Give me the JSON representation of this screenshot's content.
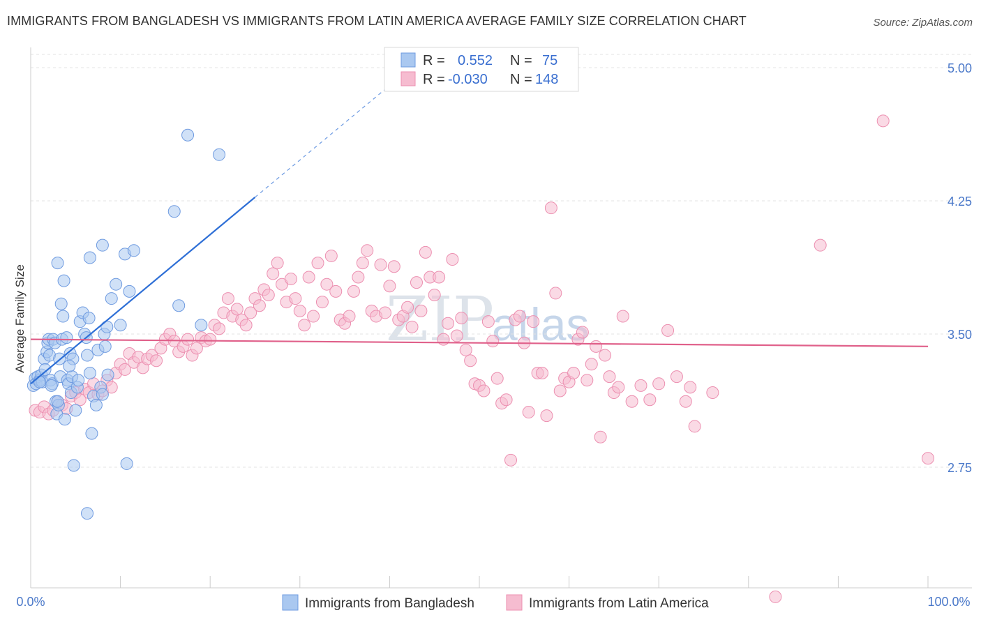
{
  "title": "IMMIGRANTS FROM BANGLADESH VS IMMIGRANTS FROM LATIN AMERICA AVERAGE FAMILY SIZE CORRELATION CHART",
  "source": "Source: ZipAtlas.com",
  "watermark": {
    "part1": "ZIP",
    "part2": "atlas"
  },
  "colors": {
    "blue_fill": "#aac8f0",
    "blue_stroke": "#6f9be0",
    "blue_line": "#2e6fd6",
    "pink_fill": "#f6bcd0",
    "pink_stroke": "#ec8fb0",
    "pink_line": "#e0608a",
    "axis_text": "#4a78c9",
    "grid": "#e3e3e3"
  },
  "legend_box": {
    "series1": {
      "r_label": "R =",
      "r_value": "0.552",
      "n_label": "N =",
      "n_value": "75"
    },
    "series2": {
      "r_label": "R =",
      "r_value": "-0.030",
      "n_label": "N =",
      "n_value": "148"
    }
  },
  "chart_data": {
    "type": "scatter",
    "title": "IMMIGRANTS FROM BANGLADESH VS IMMIGRANTS FROM LATIN AMERICA AVERAGE FAMILY SIZE CORRELATION CHART",
    "xlabel": "",
    "ylabel": "Average Family Size",
    "xlim": [
      0,
      100
    ],
    "ylim": [
      2.0,
      5.1
    ],
    "x_tick_labels": [
      "0.0%",
      "100.0%"
    ],
    "y_ticks": [
      2.75,
      3.5,
      4.25,
      5.0
    ],
    "y_tick_labels": [
      "2.75",
      "3.50",
      "4.25",
      "5.00"
    ],
    "grid": true,
    "legend_position": "bottom",
    "series": [
      {
        "name": "Immigrants from Bangladesh",
        "color": "blue",
        "R": 0.552,
        "N": 75,
        "trend": {
          "x_start": 0.0,
          "y_start": 3.22,
          "x_end": 25.0,
          "y_end": 4.27,
          "dashed_to_x": 40.5,
          "dashed_to_y": 4.92
        },
        "points": [
          [
            0.3,
            3.21
          ],
          [
            0.5,
            3.25
          ],
          [
            0.6,
            3.22
          ],
          [
            0.8,
            3.26
          ],
          [
            1.0,
            3.24
          ],
          [
            1.2,
            3.27
          ],
          [
            1.3,
            3.23
          ],
          [
            1.5,
            3.36
          ],
          [
            1.6,
            3.3
          ],
          [
            1.8,
            3.4
          ],
          [
            1.9,
            3.45
          ],
          [
            2.0,
            3.47
          ],
          [
            2.1,
            3.38
          ],
          [
            2.2,
            3.24
          ],
          [
            2.4,
            3.22
          ],
          [
            2.5,
            3.47
          ],
          [
            2.7,
            3.45
          ],
          [
            2.8,
            3.12
          ],
          [
            2.9,
            3.05
          ],
          [
            3.0,
            3.9
          ],
          [
            3.1,
            3.1
          ],
          [
            3.2,
            3.36
          ],
          [
            3.3,
            3.26
          ],
          [
            3.4,
            3.67
          ],
          [
            3.5,
            3.47
          ],
          [
            3.6,
            3.6
          ],
          [
            3.7,
            3.8
          ],
          [
            3.8,
            3.02
          ],
          [
            4.0,
            3.48
          ],
          [
            4.1,
            3.24
          ],
          [
            4.2,
            3.22
          ],
          [
            4.4,
            3.39
          ],
          [
            4.5,
            3.17
          ],
          [
            4.6,
            3.26
          ],
          [
            4.7,
            3.36
          ],
          [
            4.8,
            2.76
          ],
          [
            5.0,
            3.07
          ],
          [
            5.2,
            3.2
          ],
          [
            5.3,
            3.24
          ],
          [
            5.5,
            3.57
          ],
          [
            5.8,
            3.62
          ],
          [
            6.0,
            3.5
          ],
          [
            6.2,
            3.48
          ],
          [
            6.3,
            3.38
          ],
          [
            6.5,
            3.59
          ],
          [
            6.6,
            3.28
          ],
          [
            6.8,
            2.94
          ],
          [
            7.0,
            3.15
          ],
          [
            7.3,
            3.1
          ],
          [
            7.5,
            3.41
          ],
          [
            7.8,
            3.2
          ],
          [
            8.0,
            3.16
          ],
          [
            8.2,
            3.5
          ],
          [
            8.3,
            3.43
          ],
          [
            8.5,
            3.54
          ],
          [
            8.6,
            3.27
          ],
          [
            9.0,
            3.7
          ],
          [
            9.5,
            3.78
          ],
          [
            10.0,
            3.55
          ],
          [
            10.5,
            3.95
          ],
          [
            10.7,
            2.77
          ],
          [
            8.0,
            4.0
          ],
          [
            6.6,
            3.93
          ],
          [
            11.0,
            3.74
          ],
          [
            11.5,
            3.97
          ],
          [
            6.3,
            2.49
          ],
          [
            16.0,
            4.19
          ],
          [
            16.5,
            3.66
          ],
          [
            17.5,
            4.62
          ],
          [
            19.0,
            3.55
          ],
          [
            21.0,
            4.51
          ],
          [
            3.0,
            3.12
          ],
          [
            1.0,
            3.23
          ],
          [
            2.3,
            3.21
          ],
          [
            4.3,
            3.32
          ]
        ]
      },
      {
        "name": "Immigrants from Latin America",
        "color": "pink",
        "R": -0.03,
        "N": 148,
        "trend": {
          "x_start": 0.0,
          "y_start": 3.47,
          "x_end": 100.0,
          "y_end": 3.43
        },
        "points": [
          [
            0.5,
            3.07
          ],
          [
            1.0,
            3.06
          ],
          [
            1.5,
            3.09
          ],
          [
            2.0,
            3.05
          ],
          [
            2.5,
            3.07
          ],
          [
            3.0,
            3.12
          ],
          [
            3.5,
            3.1
          ],
          [
            4.0,
            3.08
          ],
          [
            4.5,
            3.15
          ],
          [
            5.0,
            3.17
          ],
          [
            5.5,
            3.13
          ],
          [
            6.0,
            3.19
          ],
          [
            6.5,
            3.17
          ],
          [
            7.0,
            3.22
          ],
          [
            7.5,
            3.16
          ],
          [
            8.0,
            3.18
          ],
          [
            8.5,
            3.24
          ],
          [
            9.0,
            3.2
          ],
          [
            9.5,
            3.28
          ],
          [
            10.0,
            3.33
          ],
          [
            10.5,
            3.3
          ],
          [
            11.0,
            3.39
          ],
          [
            11.5,
            3.34
          ],
          [
            12.0,
            3.37
          ],
          [
            12.5,
            3.31
          ],
          [
            13.0,
            3.36
          ],
          [
            13.5,
            3.38
          ],
          [
            14.0,
            3.35
          ],
          [
            14.5,
            3.42
          ],
          [
            15.0,
            3.47
          ],
          [
            15.5,
            3.5
          ],
          [
            16.0,
            3.46
          ],
          [
            16.5,
            3.4
          ],
          [
            17.0,
            3.43
          ],
          [
            17.5,
            3.47
          ],
          [
            18.0,
            3.38
          ],
          [
            18.5,
            3.42
          ],
          [
            19.0,
            3.48
          ],
          [
            19.5,
            3.46
          ],
          [
            20.0,
            3.47
          ],
          [
            20.5,
            3.55
          ],
          [
            21.0,
            3.53
          ],
          [
            21.5,
            3.62
          ],
          [
            22.0,
            3.7
          ],
          [
            22.5,
            3.6
          ],
          [
            23.0,
            3.64
          ],
          [
            23.5,
            3.58
          ],
          [
            24.0,
            3.55
          ],
          [
            24.5,
            3.62
          ],
          [
            25.0,
            3.7
          ],
          [
            25.5,
            3.66
          ],
          [
            26.0,
            3.75
          ],
          [
            26.5,
            3.72
          ],
          [
            27.0,
            3.84
          ],
          [
            27.5,
            3.9
          ],
          [
            28.0,
            3.78
          ],
          [
            28.5,
            3.68
          ],
          [
            29.0,
            3.81
          ],
          [
            29.5,
            3.7
          ],
          [
            30.0,
            3.63
          ],
          [
            30.5,
            3.55
          ],
          [
            31.0,
            3.82
          ],
          [
            31.5,
            3.6
          ],
          [
            32.0,
            3.9
          ],
          [
            32.5,
            3.68
          ],
          [
            33.0,
            3.78
          ],
          [
            33.5,
            3.94
          ],
          [
            34.0,
            3.74
          ],
          [
            34.5,
            3.58
          ],
          [
            35.0,
            3.56
          ],
          [
            35.5,
            3.6
          ],
          [
            36.0,
            3.74
          ],
          [
            36.5,
            3.82
          ],
          [
            37.0,
            3.9
          ],
          [
            37.5,
            3.97
          ],
          [
            38.0,
            3.63
          ],
          [
            38.5,
            3.6
          ],
          [
            39.0,
            3.89
          ],
          [
            39.5,
            3.62
          ],
          [
            40.0,
            3.77
          ],
          [
            40.5,
            3.88
          ],
          [
            41.0,
            3.58
          ],
          [
            41.5,
            3.6
          ],
          [
            42.0,
            3.65
          ],
          [
            42.5,
            3.54
          ],
          [
            43.0,
            3.79
          ],
          [
            43.5,
            3.63
          ],
          [
            44.0,
            3.96
          ],
          [
            44.5,
            3.82
          ],
          [
            45.0,
            3.72
          ],
          [
            45.5,
            3.82
          ],
          [
            46.0,
            3.47
          ],
          [
            46.5,
            3.56
          ],
          [
            47.0,
            3.92
          ],
          [
            47.5,
            3.49
          ],
          [
            48.0,
            3.59
          ],
          [
            48.5,
            3.41
          ],
          [
            49.0,
            3.35
          ],
          [
            49.5,
            3.22
          ],
          [
            50.0,
            3.21
          ],
          [
            50.5,
            3.18
          ],
          [
            51.0,
            3.57
          ],
          [
            51.5,
            3.46
          ],
          [
            52.0,
            3.25
          ],
          [
            52.5,
            3.11
          ],
          [
            53.0,
            3.13
          ],
          [
            53.5,
            2.79
          ],
          [
            54.0,
            3.58
          ],
          [
            54.5,
            3.6
          ],
          [
            55.0,
            3.45
          ],
          [
            55.5,
            3.06
          ],
          [
            56.0,
            3.57
          ],
          [
            56.5,
            3.28
          ],
          [
            57.0,
            3.28
          ],
          [
            57.5,
            3.04
          ],
          [
            58.0,
            4.21
          ],
          [
            58.5,
            3.73
          ],
          [
            59.0,
            3.18
          ],
          [
            59.5,
            3.25
          ],
          [
            60.0,
            3.23
          ],
          [
            60.5,
            3.28
          ],
          [
            61.0,
            3.47
          ],
          [
            61.5,
            3.51
          ],
          [
            62.0,
            3.24
          ],
          [
            62.5,
            3.33
          ],
          [
            63.0,
            3.43
          ],
          [
            63.5,
            2.92
          ],
          [
            64.0,
            3.38
          ],
          [
            64.5,
            3.26
          ],
          [
            65.0,
            3.17
          ],
          [
            65.5,
            3.2
          ],
          [
            66.0,
            3.6
          ],
          [
            67.0,
            3.12
          ],
          [
            68.0,
            3.21
          ],
          [
            69.0,
            3.13
          ],
          [
            70.0,
            3.22
          ],
          [
            71.0,
            3.52
          ],
          [
            72.0,
            3.26
          ],
          [
            73.0,
            3.12
          ],
          [
            73.5,
            3.2
          ],
          [
            74.0,
            2.98
          ],
          [
            76.0,
            3.17
          ],
          [
            83.0,
            2.02
          ],
          [
            88.0,
            4.0
          ],
          [
            95.0,
            4.7
          ],
          [
            100.0,
            2.8
          ]
        ]
      }
    ]
  },
  "bottom_legend": [
    "Immigrants from Bangladesh",
    "Immigrants from Latin America"
  ]
}
